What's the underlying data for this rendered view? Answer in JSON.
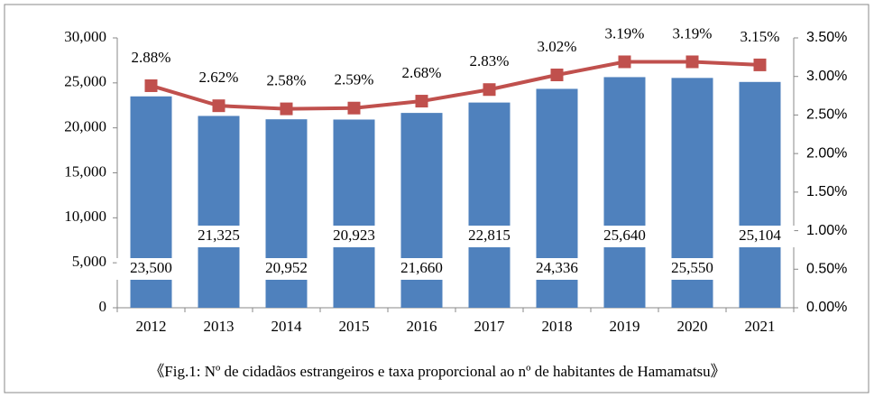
{
  "chart_data": {
    "type": "bar-line",
    "caption": "《Fig.1: Nº de cidadãos estrangeiros  e taxa proporcional ao nº  de habitantes de Hamamatsu》",
    "categories": [
      "2012",
      "2013",
      "2014",
      "2015",
      "2016",
      "2017",
      "2018",
      "2019",
      "2020",
      "2021"
    ],
    "series": [
      {
        "type": "bar",
        "color": "#4f81bd",
        "values": [
          23500,
          21325,
          20952,
          20923,
          21660,
          22815,
          24336,
          25640,
          25550,
          25104
        ],
        "value_labels": [
          "23,500",
          "21,325",
          "20,952",
          "20,923",
          "21,660",
          "22,815",
          "24,336",
          "25,640",
          "25,550",
          "25,104"
        ]
      },
      {
        "type": "line",
        "axis": "y2",
        "color": "#c0504d",
        "values": [
          2.88,
          2.62,
          2.58,
          2.59,
          2.68,
          2.83,
          3.02,
          3.19,
          3.19,
          3.15
        ],
        "value_labels": [
          "2.88%",
          "2.62%",
          "2.58%",
          "2.59%",
          "2.68%",
          "2.83%",
          "3.02%",
          "3.19%",
          "3.19%",
          "3.15%"
        ]
      }
    ],
    "ylim": [
      0,
      30000
    ],
    "yticks": [
      0,
      {
        "value": 5000,
        "label": "5,000"
      },
      {
        "value": 10000,
        "label": "10,000"
      },
      {
        "value": 15000,
        "label": "15,000"
      },
      {
        "value": 20000,
        "label": "20,000"
      },
      {
        "value": 25000,
        "label": "25,000"
      },
      {
        "value": 30000,
        "label": "30,000"
      }
    ],
    "y2lim": [
      0,
      3.5
    ],
    "y2ticks": [
      {
        "value": 0,
        "label": "0.00%"
      },
      {
        "value": 0.5,
        "label": "0.50%"
      },
      {
        "value": 1,
        "label": "1.00%"
      },
      {
        "value": 1.5,
        "label": "1.50%"
      },
      {
        "value": 2,
        "label": "2.00%"
      },
      {
        "value": 2.5,
        "label": "2.50%"
      },
      {
        "value": 3,
        "label": "3.00%"
      },
      {
        "value": 3.5,
        "label": "3.50%"
      }
    ]
  }
}
